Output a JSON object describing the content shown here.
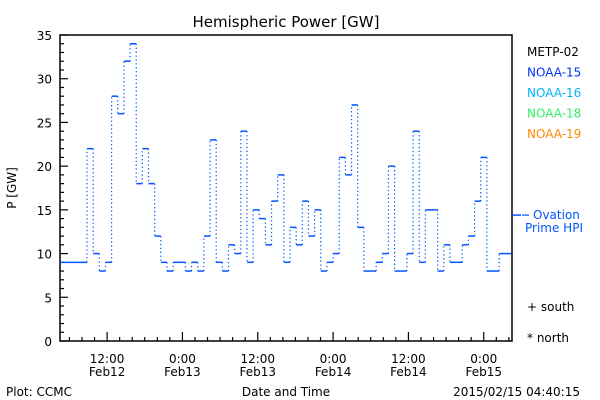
{
  "chart_data": {
    "type": "line",
    "title": "Hemispheric Power [GW]",
    "ylabel": "P [GW]",
    "xlabel": "Date and Time",
    "ylim": [
      0,
      35
    ],
    "yticks": [
      0,
      5,
      10,
      15,
      20,
      25,
      30,
      35
    ],
    "xlim_hours_from_Feb12_0000": [
      4.5,
      76.5
    ],
    "xticks": [
      {
        "hour": 12,
        "time": "12:00",
        "date": "Feb12"
      },
      {
        "hour": 24,
        "time": "0:00",
        "date": "Feb13"
      },
      {
        "hour": 36,
        "time": "12:00",
        "date": "Feb13"
      },
      {
        "hour": 48,
        "time": "0:00",
        "date": "Feb14"
      },
      {
        "hour": 60,
        "time": "12:00",
        "date": "Feb14"
      },
      {
        "hour": 72,
        "time": "0:00",
        "date": "Feb15"
      }
    ],
    "grid": false,
    "legend_placement": "right",
    "legend": [
      {
        "name": "METP-02",
        "color": "#000000"
      },
      {
        "name": "NOAA-15",
        "color": "#0033ff"
      },
      {
        "name": "NOAA-16",
        "color": "#00b4ff"
      },
      {
        "name": "NOAA-18",
        "color": "#33ee66"
      },
      {
        "name": "NOAA-19",
        "color": "#ff8800"
      }
    ],
    "series": [
      {
        "name": "NOAA-15",
        "style": "step",
        "color": "#0055ff",
        "initial_value": 9,
        "first_step_hour": 8.8,
        "step_hours": 0.98,
        "values": [
          22,
          10,
          8,
          9,
          28,
          26,
          32,
          34,
          18,
          22,
          18,
          12,
          9,
          8,
          9,
          9,
          8,
          9,
          8,
          12,
          23,
          9,
          8,
          11,
          10,
          24,
          9,
          15,
          14,
          11,
          16,
          19,
          9,
          13,
          11,
          16,
          12,
          15,
          8,
          9,
          10,
          21,
          19,
          27,
          13,
          8,
          8,
          9,
          10,
          20,
          8,
          8,
          10,
          24,
          9,
          15,
          15,
          8,
          11,
          9,
          9,
          11,
          12,
          16,
          21,
          8,
          8,
          10,
          10
        ]
      }
    ],
    "ovation": {
      "label_line1": "Ovation",
      "label_line2": "Prime HPI",
      "value": 14.4,
      "color": "#0055ff"
    },
    "markers_legend": {
      "south": "+ south",
      "north": "* north"
    },
    "footer": {
      "left": "Plot: CCMC",
      "right": "2015/02/15 04:40:15"
    }
  }
}
